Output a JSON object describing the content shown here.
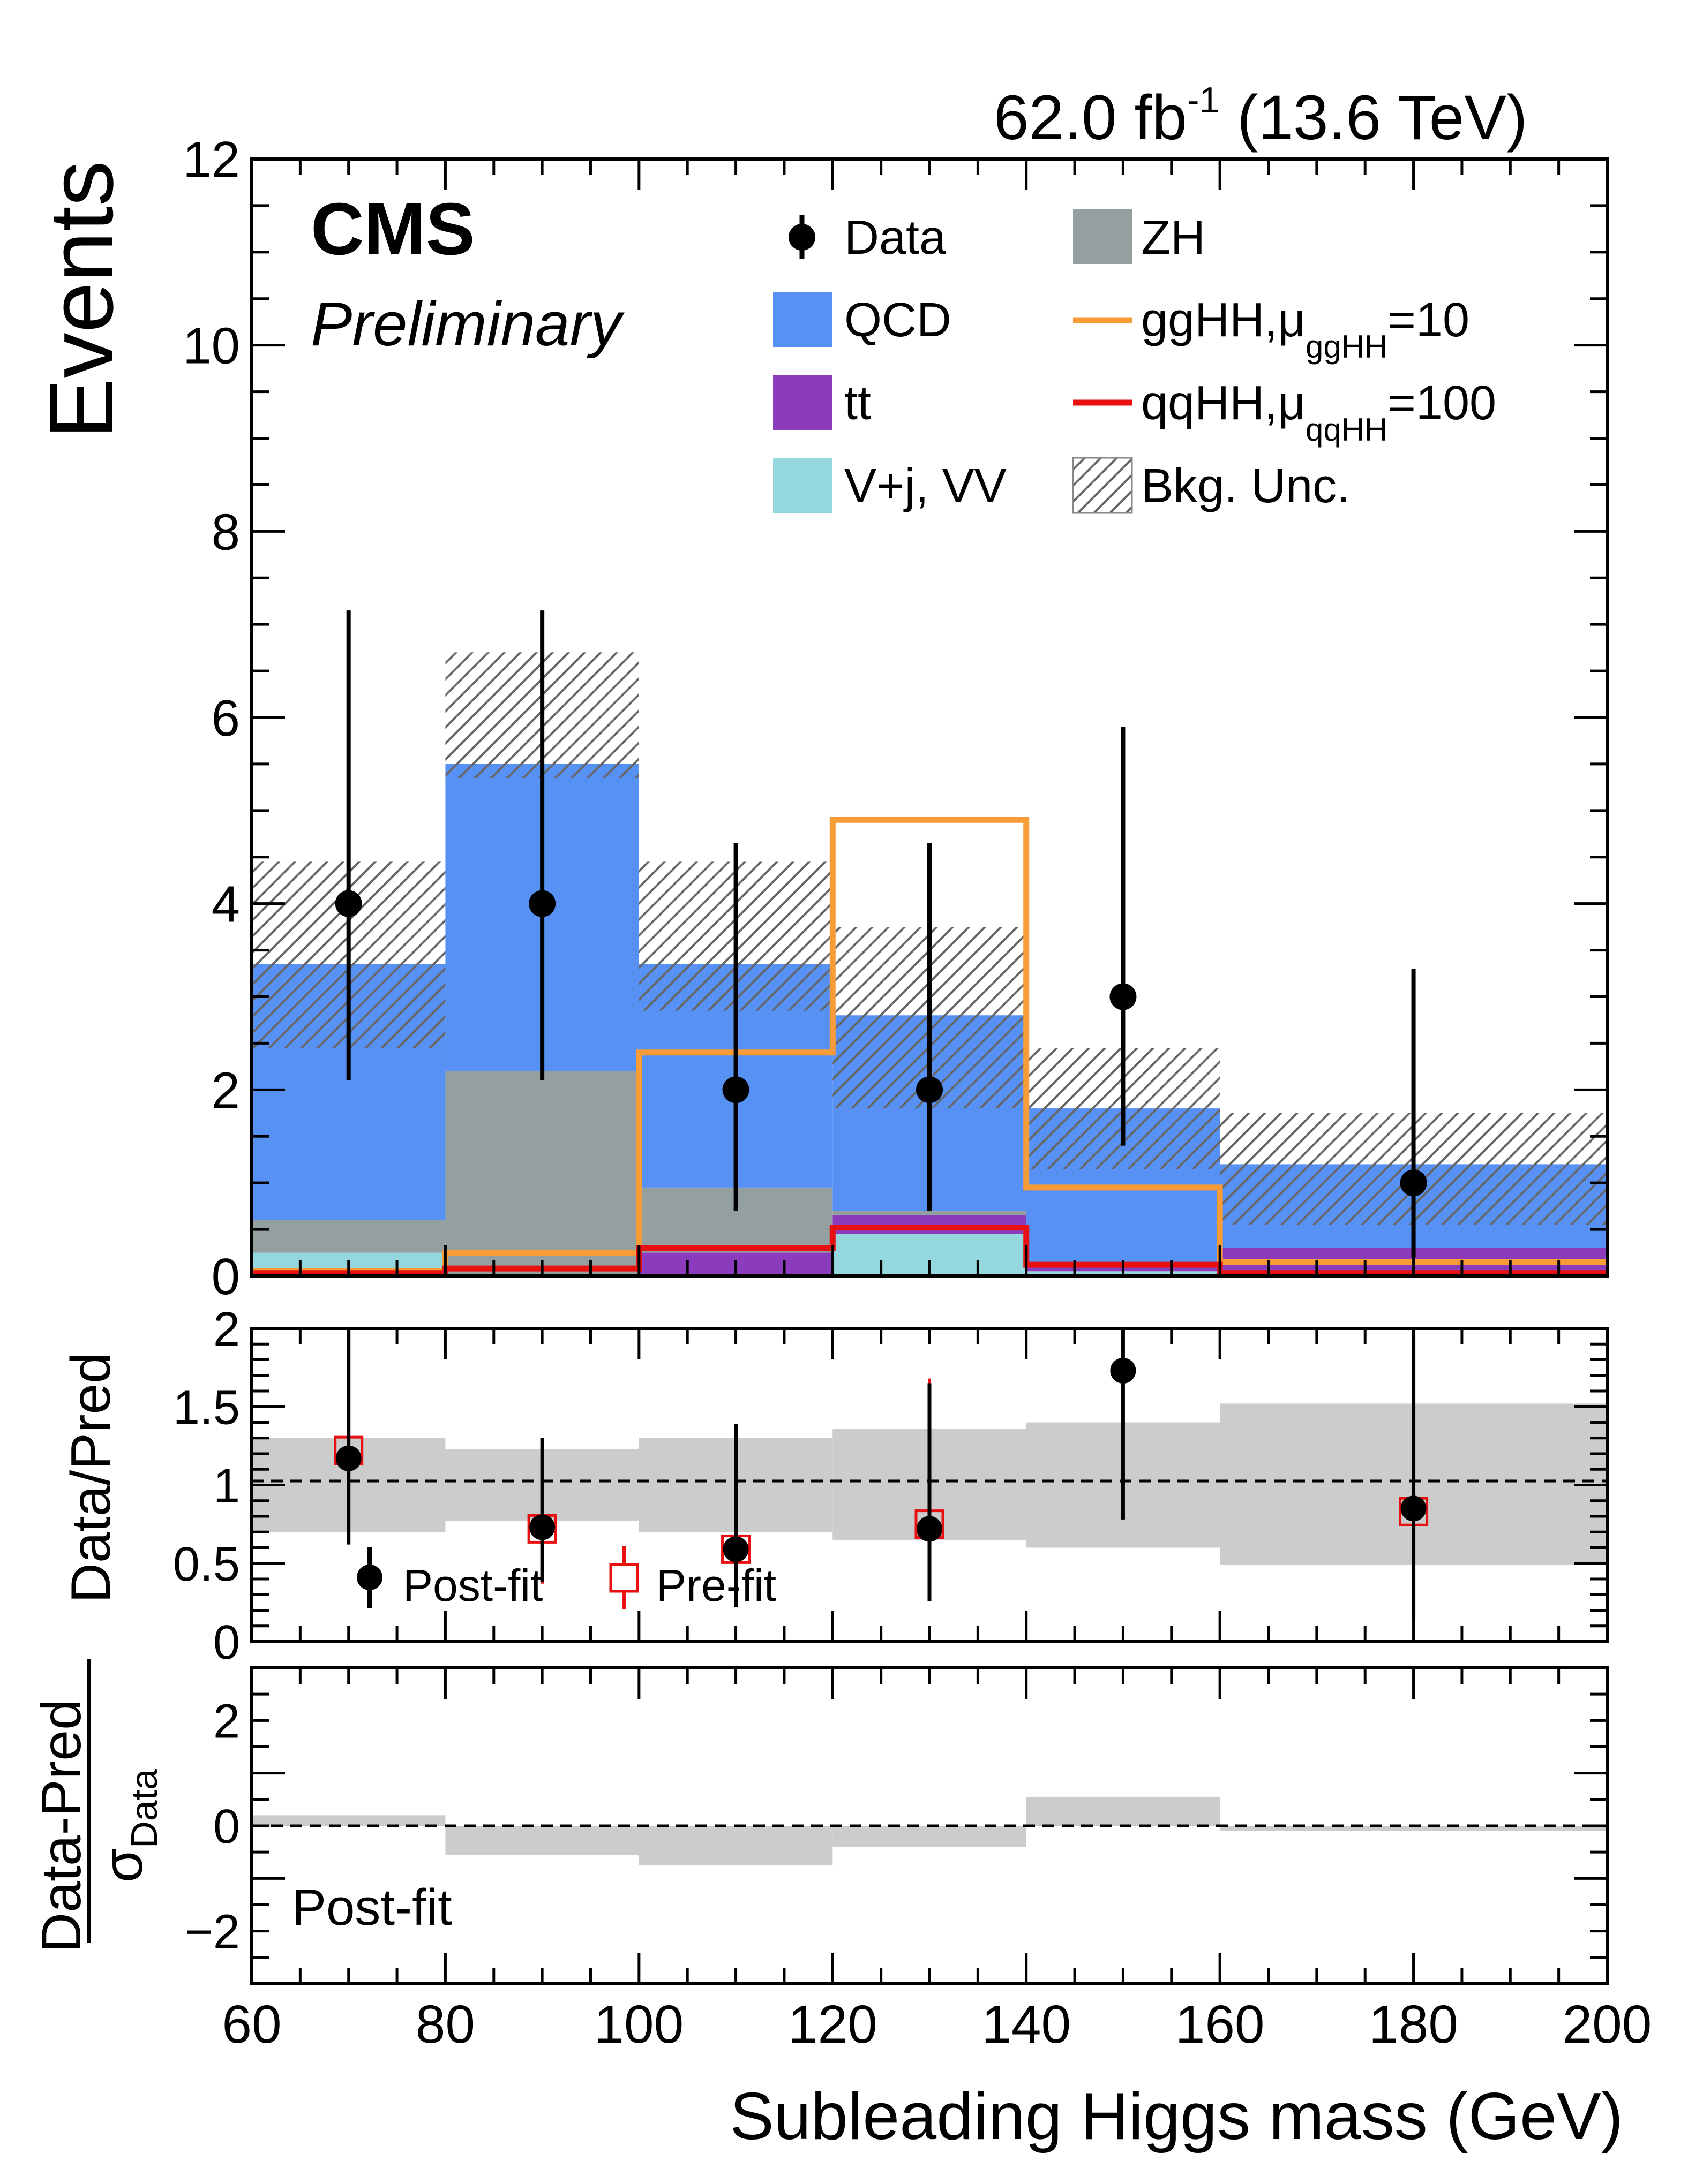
{
  "chart_data": {
    "type": "bar",
    "stacked": true,
    "header": {
      "lumi_value": "62.0 fb",
      "lumi_exponent": "-1",
      "energy": "(13.6 TeV)",
      "experiment": "CMS",
      "status": "Preliminary"
    },
    "xlabel": "Subleading Higgs mass (GeV)",
    "xlim": [
      60,
      200
    ],
    "x_ticks": [
      "60",
      "80",
      "100",
      "120",
      "140",
      "160",
      "180",
      "200"
    ],
    "bin_edges": [
      60,
      80,
      100,
      120,
      140,
      160,
      200
    ],
    "main_panel": {
      "ylabel": "Events",
      "ylim": [
        0,
        12
      ],
      "y_ticks": [
        "0",
        "2",
        "4",
        "6",
        "8",
        "10",
        "12"
      ],
      "stack_order_bottom_to_top": [
        "V+j, VV",
        "tt",
        "ZH",
        "QCD"
      ],
      "series": [
        {
          "name": "V+j, VV",
          "kind": "stack",
          "color": "#94d8dd",
          "values": [
            0.25,
            0.0,
            0.0,
            0.45,
            0.05,
            0.0
          ]
        },
        {
          "name": "tt",
          "kind": "stack",
          "color": "#8a3cbc",
          "values": [
            0.0,
            0.0,
            0.25,
            0.2,
            0.1,
            0.3
          ]
        },
        {
          "name": "ZH",
          "kind": "stack",
          "color": "#94a0a0",
          "values": [
            0.35,
            2.2,
            0.7,
            0.05,
            0.0,
            0.0
          ]
        },
        {
          "name": "QCD",
          "kind": "stack",
          "color": "#5791f4",
          "values": [
            2.75,
            3.3,
            2.4,
            2.1,
            1.65,
            0.9
          ]
        },
        {
          "name": "ggHH, μ_ggHH=10",
          "kind": "step",
          "color": "#f89c38",
          "values": [
            0.05,
            0.25,
            2.4,
            4.9,
            0.95,
            0.15
          ]
        },
        {
          "name": "qqHH, μ_qqHH=100",
          "kind": "step",
          "color": "#e81010",
          "values": [
            0.03,
            0.08,
            0.3,
            0.52,
            0.12,
            0.03
          ]
        }
      ],
      "bkg_uncertainty": {
        "name": "Bkg. Unc.",
        "low": [
          2.45,
          5.35,
          2.85,
          1.8,
          1.15,
          0.55
        ],
        "high": [
          4.45,
          6.7,
          4.45,
          3.75,
          2.45,
          1.75
        ]
      },
      "data": {
        "name": "Data",
        "x": [
          70,
          90,
          110,
          130,
          150,
          180
        ],
        "y": [
          4,
          4,
          2,
          2,
          3,
          1
        ],
        "err_low": [
          1.9,
          1.9,
          1.3,
          1.3,
          1.6,
          0.8
        ],
        "err_high": [
          3.15,
          3.15,
          2.65,
          2.65,
          2.9,
          2.3
        ]
      },
      "legend": {
        "data": "Data",
        "qcd": "QCD",
        "tt": "tt",
        "vj": "V+j, VV",
        "zh": "ZH",
        "gghh_main": "ggHH,",
        "gghh_mu": "μ",
        "gghh_sub": "ggHH",
        "gghh_val": "=10",
        "qqhh_main": "qqHH,",
        "qqhh_mu": "μ",
        "qqhh_sub": "qqHH",
        "qqhh_val": "=100",
        "unc": "Bkg. Unc."
      }
    },
    "ratio_panel": {
      "ylabel": "Data/Pred",
      "ylim": [
        0,
        2
      ],
      "y_ticks": [
        "0",
        "0.5",
        "1",
        "1.5",
        "2"
      ],
      "unc_band": {
        "low": [
          0.7,
          0.77,
          0.7,
          0.65,
          0.6,
          0.49
        ],
        "high": [
          1.3,
          1.23,
          1.3,
          1.36,
          1.4,
          1.52
        ]
      },
      "postfit": {
        "name": "Post-fit",
        "x": [
          70,
          90,
          110,
          130,
          150,
          180
        ],
        "y": [
          1.17,
          0.73,
          0.59,
          0.72,
          1.73,
          0.85
        ],
        "err_low": [
          0.55,
          0.35,
          0.37,
          0.46,
          0.95,
          0.7
        ],
        "err_high": [
          0.9,
          0.57,
          0.8,
          0.93,
          1.6,
          1.9
        ]
      },
      "prefit": {
        "name": "Pre-fit",
        "x": [
          70,
          90,
          110,
          130,
          180
        ],
        "y": [
          1.22,
          0.72,
          0.59,
          0.75,
          0.83
        ],
        "err_low": [
          0.55,
          0.35,
          0.37,
          0.46,
          0.7
        ],
        "err_high": [
          0.9,
          0.57,
          0.8,
          0.93,
          1.9
        ]
      }
    },
    "pull_panel": {
      "ylabel_num": "Data-Pred",
      "ylabel_sigma": "σ",
      "ylabel_sub": "Data",
      "ylim": [
        -3,
        3
      ],
      "y_ticks": [
        "−2",
        "0",
        "2"
      ],
      "values": [
        0.2,
        -0.55,
        -0.75,
        -0.4,
        0.55,
        -0.1
      ],
      "annotation": "Post-fit"
    }
  }
}
